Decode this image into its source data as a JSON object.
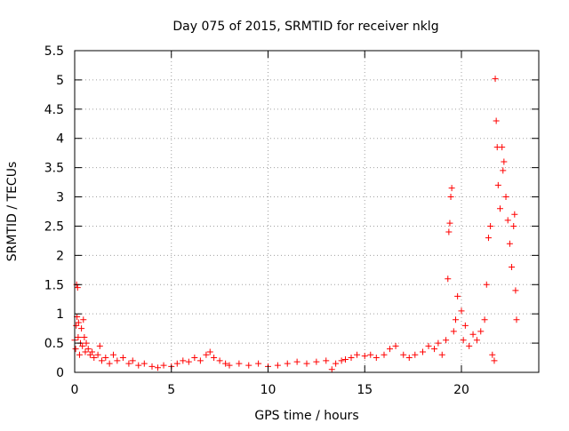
{
  "chart_data": {
    "type": "scatter",
    "title": "Day 075 of 2015, SRMTID for receiver nklg",
    "xlabel": "GPS time / hours",
    "ylabel": "SRMTID / TECUs",
    "xlim": [
      0,
      24
    ],
    "ylim": [
      0,
      5.5
    ],
    "xticks": [
      0,
      5,
      10,
      15,
      20
    ],
    "xtick_labels": [
      "0",
      "5",
      "10",
      "15",
      "20"
    ],
    "yticks": [
      0,
      0.5,
      1,
      1.5,
      2,
      2.5,
      3,
      3.5,
      4,
      4.5,
      5,
      5.5
    ],
    "ytick_labels": [
      "0",
      "0.5",
      "1",
      "1.5",
      "2",
      "2.5",
      "3",
      "3.5",
      "4",
      "4.5",
      "5",
      "5.5"
    ],
    "grid": true,
    "marker": "+",
    "color": "#ff0000",
    "series": [
      {
        "name": "SRMTID",
        "points": [
          [
            0.0,
            0.55
          ],
          [
            0.05,
            0.4
          ],
          [
            0.08,
            0.8
          ],
          [
            0.1,
            1.5
          ],
          [
            0.12,
            0.95
          ],
          [
            0.15,
            1.45
          ],
          [
            0.18,
            0.6
          ],
          [
            0.2,
            0.85
          ],
          [
            0.25,
            0.3
          ],
          [
            0.3,
            0.5
          ],
          [
            0.35,
            0.75
          ],
          [
            0.4,
            0.45
          ],
          [
            0.45,
            0.9
          ],
          [
            0.5,
            0.6
          ],
          [
            0.55,
            0.35
          ],
          [
            0.6,
            0.5
          ],
          [
            0.7,
            0.4
          ],
          [
            0.8,
            0.3
          ],
          [
            0.9,
            0.35
          ],
          [
            1.0,
            0.25
          ],
          [
            1.2,
            0.3
          ],
          [
            1.3,
            0.45
          ],
          [
            1.4,
            0.2
          ],
          [
            1.6,
            0.25
          ],
          [
            1.8,
            0.15
          ],
          [
            2.0,
            0.3
          ],
          [
            2.2,
            0.2
          ],
          [
            2.5,
            0.25
          ],
          [
            2.8,
            0.15
          ],
          [
            3.0,
            0.2
          ],
          [
            3.3,
            0.12
          ],
          [
            3.6,
            0.15
          ],
          [
            4.0,
            0.1
          ],
          [
            4.3,
            0.08
          ],
          [
            4.6,
            0.12
          ],
          [
            5.0,
            0.1
          ],
          [
            5.3,
            0.15
          ],
          [
            5.6,
            0.2
          ],
          [
            5.9,
            0.18
          ],
          [
            6.2,
            0.25
          ],
          [
            6.5,
            0.2
          ],
          [
            6.8,
            0.3
          ],
          [
            7.0,
            0.35
          ],
          [
            7.2,
            0.25
          ],
          [
            7.5,
            0.2
          ],
          [
            7.8,
            0.15
          ],
          [
            8.0,
            0.12
          ],
          [
            8.5,
            0.15
          ],
          [
            9.0,
            0.12
          ],
          [
            9.5,
            0.15
          ],
          [
            10.0,
            0.1
          ],
          [
            10.5,
            0.12
          ],
          [
            11.0,
            0.15
          ],
          [
            11.5,
            0.18
          ],
          [
            12.0,
            0.15
          ],
          [
            12.5,
            0.18
          ],
          [
            13.0,
            0.2
          ],
          [
            13.3,
            0.05
          ],
          [
            13.5,
            0.15
          ],
          [
            13.8,
            0.2
          ],
          [
            14.0,
            0.22
          ],
          [
            14.3,
            0.25
          ],
          [
            14.6,
            0.3
          ],
          [
            15.0,
            0.28
          ],
          [
            15.3,
            0.3
          ],
          [
            15.6,
            0.25
          ],
          [
            16.0,
            0.3
          ],
          [
            16.3,
            0.4
          ],
          [
            16.6,
            0.45
          ],
          [
            17.0,
            0.3
          ],
          [
            17.3,
            0.25
          ],
          [
            17.6,
            0.3
          ],
          [
            18.0,
            0.35
          ],
          [
            18.3,
            0.45
          ],
          [
            18.6,
            0.4
          ],
          [
            18.8,
            0.5
          ],
          [
            19.0,
            0.3
          ],
          [
            19.2,
            0.55
          ],
          [
            19.3,
            1.6
          ],
          [
            19.35,
            2.4
          ],
          [
            19.4,
            2.55
          ],
          [
            19.45,
            3.0
          ],
          [
            19.5,
            3.15
          ],
          [
            19.6,
            0.7
          ],
          [
            19.7,
            0.9
          ],
          [
            19.8,
            1.3
          ],
          [
            20.0,
            1.05
          ],
          [
            20.1,
            0.55
          ],
          [
            20.2,
            0.8
          ],
          [
            20.4,
            0.45
          ],
          [
            20.6,
            0.65
          ],
          [
            20.8,
            0.55
          ],
          [
            21.0,
            0.7
          ],
          [
            21.2,
            0.9
          ],
          [
            21.3,
            1.5
          ],
          [
            21.4,
            2.3
          ],
          [
            21.5,
            2.5
          ],
          [
            21.6,
            0.3
          ],
          [
            21.7,
            0.2
          ],
          [
            21.75,
            5.02
          ],
          [
            21.8,
            4.3
          ],
          [
            21.85,
            3.85
          ],
          [
            21.9,
            3.2
          ],
          [
            22.0,
            2.8
          ],
          [
            22.1,
            3.85
          ],
          [
            22.15,
            3.45
          ],
          [
            22.2,
            3.6
          ],
          [
            22.3,
            3.0
          ],
          [
            22.4,
            2.6
          ],
          [
            22.5,
            2.2
          ],
          [
            22.6,
            1.8
          ],
          [
            22.7,
            2.5
          ],
          [
            22.75,
            2.7
          ],
          [
            22.8,
            1.4
          ],
          [
            22.85,
            0.9
          ]
        ]
      }
    ]
  }
}
